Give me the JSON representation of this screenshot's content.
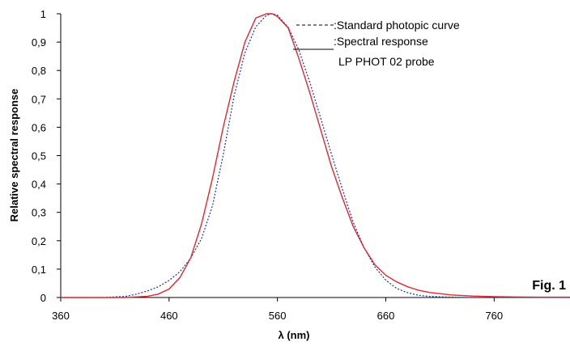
{
  "chart_data": {
    "type": "line",
    "xlabel": "λ (nm)",
    "ylabel": "Relative spectral response",
    "xlim": [
      360,
      830
    ],
    "ylim": [
      0,
      1
    ],
    "x_ticks": [
      "360",
      "460",
      "560",
      "660",
      "760"
    ],
    "x_tick_values": [
      360,
      460,
      560,
      660,
      760
    ],
    "y_ticks": [
      "0",
      "0,1",
      "0,2",
      "0,3",
      "0,4",
      "0,5",
      "0,6",
      "0,7",
      "0,8",
      "0,9",
      "1"
    ],
    "y_tick_values": [
      0,
      0.1,
      0.2,
      0.3,
      0.4,
      0.5,
      0.6,
      0.7,
      0.8,
      0.9,
      1
    ],
    "grid": false,
    "legend_position": "top-right",
    "annotation": "Fig. 1",
    "series": [
      {
        "name": ":Standard photopic curve",
        "style": "dashed",
        "color": "#1a2fb8",
        "x": [
          360,
          400,
          420,
          430,
          440,
          450,
          460,
          470,
          480,
          490,
          500,
          510,
          520,
          530,
          540,
          550,
          555,
          560,
          570,
          580,
          590,
          600,
          610,
          620,
          630,
          640,
          650,
          660,
          670,
          680,
          690,
          700,
          720,
          740,
          830
        ],
        "y": [
          0,
          0,
          0.004,
          0.012,
          0.023,
          0.038,
          0.06,
          0.091,
          0.139,
          0.208,
          0.323,
          0.503,
          0.71,
          0.862,
          0.954,
          0.995,
          1.0,
          0.995,
          0.952,
          0.87,
          0.757,
          0.631,
          0.503,
          0.381,
          0.265,
          0.175,
          0.107,
          0.061,
          0.032,
          0.017,
          0.008,
          0.004,
          0.001,
          0,
          0
        ]
      },
      {
        "name": ":Spectral response",
        "name_line2": "LP PHOT 02 probe",
        "style": "solid",
        "color": "#e0282e",
        "x": [
          360,
          420,
          440,
          450,
          460,
          470,
          480,
          490,
          500,
          510,
          520,
          530,
          540,
          550,
          555,
          560,
          570,
          580,
          590,
          600,
          610,
          620,
          630,
          640,
          650,
          660,
          670,
          680,
          690,
          700,
          720,
          740,
          760,
          780,
          800,
          830
        ],
        "y": [
          0,
          0,
          0.004,
          0.012,
          0.03,
          0.07,
          0.14,
          0.26,
          0.42,
          0.6,
          0.76,
          0.9,
          0.985,
          1.0,
          1.0,
          0.99,
          0.95,
          0.84,
          0.72,
          0.59,
          0.46,
          0.35,
          0.25,
          0.175,
          0.115,
          0.078,
          0.055,
          0.038,
          0.026,
          0.018,
          0.009,
          0.005,
          0.003,
          0.002,
          0.001,
          0.001
        ]
      }
    ]
  }
}
